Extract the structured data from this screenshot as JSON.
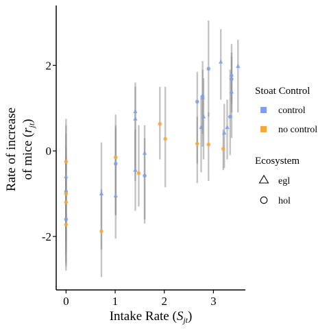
{
  "chart_data": {
    "type": "scatter",
    "xlabel_text": "Intake Rate (",
    "xlabel_sym": "S",
    "xlabel_sub": "jt",
    "xlabel_close": ")",
    "ylabel_line1": "Rate of increase",
    "ylabel_line2_text": "of mice (",
    "ylabel_line2_sym": "r",
    "ylabel_line2_sub": "jt",
    "ylabel_line2_close": ")",
    "xlim": [
      -0.2,
      3.65
    ],
    "ylim": [
      -3.25,
      3.4
    ],
    "x_ticks": [
      0,
      1,
      2,
      3
    ],
    "y_ticks": [
      -2,
      0,
      2
    ],
    "grid": false,
    "legend_position": "right",
    "color_legend": {
      "title": "Stoat Control",
      "entries": [
        {
          "label": "control",
          "color": "#7b9fe8"
        },
        {
          "label": "no control",
          "color": "#f5a83a"
        }
      ]
    },
    "shape_legend": {
      "title": "Ecosystem",
      "entries": [
        {
          "label": "egl",
          "shape": "triangle"
        },
        {
          "label": "hol",
          "shape": "circle"
        }
      ]
    },
    "points": [
      {
        "x": 0.0,
        "y": -0.95,
        "lo": -2.7,
        "hi": 0.4,
        "group": "control",
        "eco": "hol"
      },
      {
        "x": 0.0,
        "y": -0.6,
        "lo": -2.1,
        "hi": 0.6,
        "group": "control",
        "eco": "egl"
      },
      {
        "x": 0.0,
        "y": -1.6,
        "lo": -2.8,
        "hi": -0.3,
        "group": "control",
        "eco": "hol"
      },
      {
        "x": 0.0,
        "y": -0.25,
        "lo": -1.7,
        "hi": 0.75,
        "group": "no control",
        "eco": "hol"
      },
      {
        "x": 0.0,
        "y": -1.0,
        "lo": -2.3,
        "hi": 0.1,
        "group": "no control",
        "eco": "hol"
      },
      {
        "x": 0.0,
        "y": -1.2,
        "lo": -2.4,
        "hi": -0.1,
        "group": "no control",
        "eco": "hol"
      },
      {
        "x": 0.0,
        "y": -1.72,
        "lo": -2.6,
        "hi": -0.6,
        "group": "no control",
        "eco": "hol"
      },
      {
        "x": 0.72,
        "y": -1.0,
        "lo": -2.3,
        "hi": 0.2,
        "group": "control",
        "eco": "egl"
      },
      {
        "x": 0.72,
        "y": -1.88,
        "lo": -2.95,
        "hi": -0.9,
        "group": "no control",
        "eco": "hol"
      },
      {
        "x": 1.01,
        "y": -0.3,
        "lo": -1.5,
        "hi": 0.6,
        "group": "control",
        "eco": "hol"
      },
      {
        "x": 1.01,
        "y": -1.05,
        "lo": -2.05,
        "hi": 0.85,
        "group": "control",
        "eco": "egl"
      },
      {
        "x": 1.01,
        "y": -0.15,
        "lo": -1.5,
        "hi": 0.55,
        "group": "no control",
        "eco": "hol"
      },
      {
        "x": 1.41,
        "y": 0.92,
        "lo": -0.4,
        "hi": 1.6,
        "group": "control",
        "eco": "egl"
      },
      {
        "x": 1.41,
        "y": 0.75,
        "lo": -0.7,
        "hi": 1.5,
        "group": "control",
        "eco": "egl"
      },
      {
        "x": 1.41,
        "y": -0.45,
        "lo": -1.4,
        "hi": 0.5,
        "group": "control",
        "eco": "egl"
      },
      {
        "x": 1.48,
        "y": -0.52,
        "lo": -1.3,
        "hi": 0.6,
        "group": "no control",
        "eco": "hol"
      },
      {
        "x": 1.6,
        "y": -0.05,
        "lo": -1.7,
        "hi": 0.6,
        "group": "control",
        "eco": "egl"
      },
      {
        "x": 1.6,
        "y": -0.58,
        "lo": -1.6,
        "hi": 0.3,
        "group": "control",
        "eco": "hol"
      },
      {
        "x": 1.91,
        "y": 0.63,
        "lo": -0.2,
        "hi": 1.5,
        "group": "no control",
        "eco": "hol"
      },
      {
        "x": 2.02,
        "y": 0.28,
        "lo": -0.85,
        "hi": 1.5,
        "group": "no control",
        "eco": "hol"
      },
      {
        "x": 2.67,
        "y": 1.15,
        "lo": -0.75,
        "hi": 1.85,
        "group": "control",
        "eco": "hol"
      },
      {
        "x": 2.67,
        "y": 0.17,
        "lo": -0.3,
        "hi": 0.8,
        "group": "no control",
        "eco": "hol"
      },
      {
        "x": 2.78,
        "y": 1.25,
        "lo": 0.1,
        "hi": 1.9,
        "group": "control",
        "eco": "egl"
      },
      {
        "x": 2.78,
        "y": 1.3,
        "lo": 0.4,
        "hi": 2.1,
        "group": "control",
        "eco": "egl"
      },
      {
        "x": 2.8,
        "y": 0.8,
        "lo": -0.2,
        "hi": 1.7,
        "group": "control",
        "eco": "egl"
      },
      {
        "x": 2.75,
        "y": 0.55,
        "lo": -0.5,
        "hi": 1.3,
        "group": "control",
        "eco": "egl"
      },
      {
        "x": 2.9,
        "y": 1.92,
        "lo": 0.8,
        "hi": 3.05,
        "group": "control",
        "eco": "hol"
      },
      {
        "x": 2.9,
        "y": 0.15,
        "lo": -0.7,
        "hi": 0.9,
        "group": "no control",
        "eco": "hol"
      },
      {
        "x": 3.15,
        "y": 2.08,
        "lo": 1.2,
        "hi": 2.85,
        "group": "control",
        "eco": "egl"
      },
      {
        "x": 3.2,
        "y": 0.05,
        "lo": -0.45,
        "hi": 0.5,
        "group": "no control",
        "eco": "hol"
      },
      {
        "x": 3.22,
        "y": 0.42,
        "lo": -0.4,
        "hi": 1.1,
        "group": "control",
        "eco": "egl"
      },
      {
        "x": 3.28,
        "y": 0.55,
        "lo": -0.2,
        "hi": 1.2,
        "group": "control",
        "eco": "egl"
      },
      {
        "x": 3.34,
        "y": 0.8,
        "lo": -0.1,
        "hi": 1.9,
        "group": "control",
        "eco": "hol"
      },
      {
        "x": 3.37,
        "y": 1.38,
        "lo": 0.3,
        "hi": 2.3,
        "group": "control",
        "eco": "egl"
      },
      {
        "x": 3.37,
        "y": 1.78,
        "lo": 0.9,
        "hi": 2.5,
        "group": "control",
        "eco": "egl"
      },
      {
        "x": 3.37,
        "y": 1.68,
        "lo": 1.1,
        "hi": 2.2,
        "group": "control",
        "eco": "hol"
      },
      {
        "x": 3.5,
        "y": 1.98,
        "lo": 0.9,
        "hi": 2.6,
        "group": "control",
        "eco": "egl"
      }
    ]
  }
}
